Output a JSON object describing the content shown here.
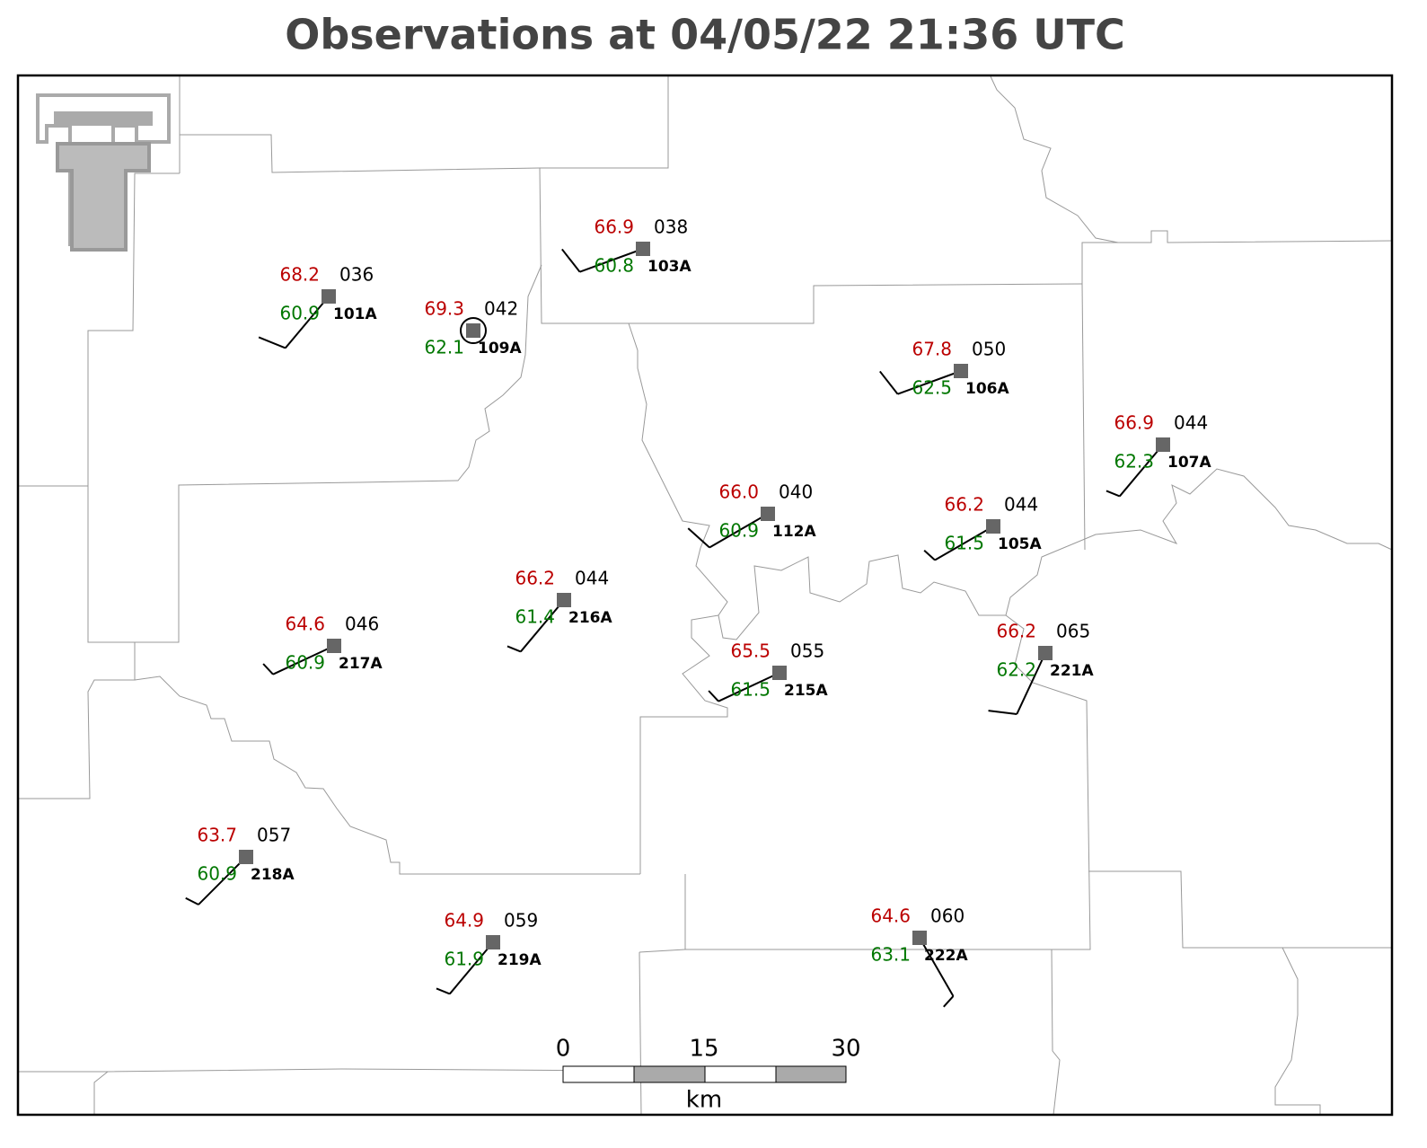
{
  "title": "Observations at 04/05/22 21:36 UTC",
  "stations": [
    {
      "id": "101A",
      "temperature": "68.2",
      "dewpoint": "60.9",
      "pressure": "036",
      "wind": {
        "direction": 220,
        "speed": 10
      }
    },
    {
      "id": "109A",
      "temperature": "69.3",
      "dewpoint": "62.1",
      "pressure": "042",
      "wind": {
        "direction": 0,
        "speed": 0
      }
    },
    {
      "id": "103A",
      "temperature": "66.9",
      "dewpoint": "60.8",
      "pressure": "038",
      "wind": {
        "direction": 250,
        "speed": 10
      }
    },
    {
      "id": "106A",
      "temperature": "67.8",
      "dewpoint": "62.5",
      "pressure": "050",
      "wind": {
        "direction": 250,
        "speed": 10
      }
    },
    {
      "id": "107A",
      "temperature": "66.9",
      "dewpoint": "62.3",
      "pressure": "044",
      "wind": {
        "direction": 220,
        "speed": 5
      }
    },
    {
      "id": "112A",
      "temperature": "66.0",
      "dewpoint": "60.9",
      "pressure": "040",
      "wind": {
        "direction": 240,
        "speed": 10
      }
    },
    {
      "id": "105A",
      "temperature": "66.2",
      "dewpoint": "61.5",
      "pressure": "044",
      "wind": {
        "direction": 240,
        "speed": 5
      }
    },
    {
      "id": "216A",
      "temperature": "66.2",
      "dewpoint": "61.4",
      "pressure": "044",
      "wind": {
        "direction": 220,
        "speed": 5
      }
    },
    {
      "id": "217A",
      "temperature": "64.6",
      "dewpoint": "60.9",
      "pressure": "046",
      "wind": {
        "direction": 245,
        "speed": 5
      }
    },
    {
      "id": "215A",
      "temperature": "65.5",
      "dewpoint": "61.5",
      "pressure": "055",
      "wind": {
        "direction": 245,
        "speed": 5
      }
    },
    {
      "id": "221A",
      "temperature": "66.2",
      "dewpoint": "62.2",
      "pressure": "065",
      "wind": {
        "direction": 205,
        "speed": 10
      }
    },
    {
      "id": "218A",
      "temperature": "63.7",
      "dewpoint": "60.9",
      "pressure": "057",
      "wind": {
        "direction": 225,
        "speed": 5
      }
    },
    {
      "id": "219A",
      "temperature": "64.9",
      "dewpoint": "61.9",
      "pressure": "059",
      "wind": {
        "direction": 220,
        "speed": 5
      }
    },
    {
      "id": "222A",
      "temperature": "64.6",
      "dewpoint": "63.1",
      "pressure": "060",
      "wind": {
        "direction": 150,
        "speed": 5
      }
    }
  ],
  "scale_bar": {
    "labels": [
      "0",
      "15",
      "30"
    ],
    "unit": "km"
  }
}
